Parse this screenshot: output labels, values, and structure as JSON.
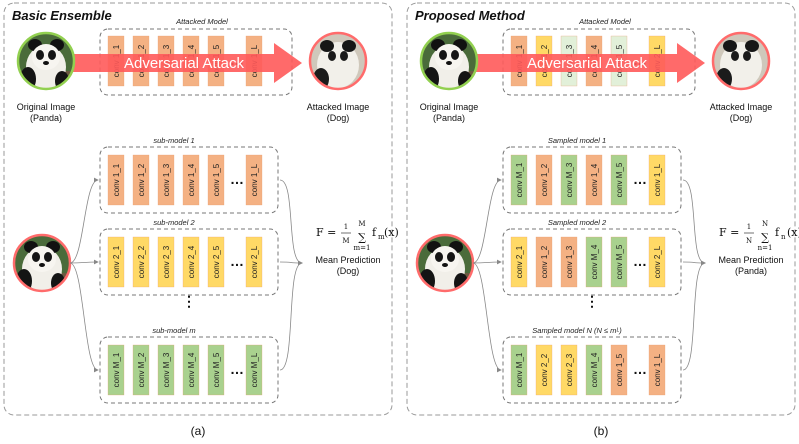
{
  "colors": {
    "orange": "#f4b183",
    "yellow": "#ffd966",
    "green": "#a9d18e",
    "lightgreen": "#e2f0d9",
    "arrow": "#ff5a5a",
    "ring_green": "#92d050",
    "ring_red": "#ff6b6b"
  },
  "panels": [
    {
      "id": "a",
      "title": "Basic Ensemble",
      "subfigure_label": "(a)",
      "attacked_model_label": "Attacked Model",
      "attack_label": "Adversarial Attack",
      "original_caption": [
        "Original Image",
        "(Panda)"
      ],
      "attacked_caption": [
        "Attacked Image",
        "(Dog)"
      ],
      "attacked_layers": [
        {
          "label": "conv 1_1",
          "color": "orange"
        },
        {
          "label": "conv 1_2",
          "color": "orange"
        },
        {
          "label": "conv 1_3",
          "color": "orange"
        },
        {
          "label": "conv 1_4",
          "color": "orange"
        },
        {
          "label": "conv 1_5",
          "color": "orange"
        },
        {
          "label": "conv 1_L",
          "color": "orange"
        }
      ],
      "sub_models": [
        {
          "label": "sub-model 1",
          "layers": [
            {
              "label": "conv 1_1",
              "color": "orange"
            },
            {
              "label": "conv 1_2",
              "color": "orange"
            },
            {
              "label": "conv 1_3",
              "color": "orange"
            },
            {
              "label": "conv 1_4",
              "color": "orange"
            },
            {
              "label": "conv 1_5",
              "color": "orange"
            },
            {
              "label": "conv 1_L",
              "color": "orange"
            }
          ]
        },
        {
          "label": "sub-model 2",
          "layers": [
            {
              "label": "conv 2_1",
              "color": "yellow"
            },
            {
              "label": "conv 2_2",
              "color": "yellow"
            },
            {
              "label": "conv 2_3",
              "color": "yellow"
            },
            {
              "label": "conv 2_4",
              "color": "yellow"
            },
            {
              "label": "conv 2_5",
              "color": "yellow"
            },
            {
              "label": "conv 2_L",
              "color": "yellow"
            }
          ]
        },
        {
          "label": "sub-model m",
          "layers": [
            {
              "label": "conv M_1",
              "color": "green"
            },
            {
              "label": "conv M_2",
              "color": "green"
            },
            {
              "label": "conv M_3",
              "color": "green"
            },
            {
              "label": "conv M_4",
              "color": "green"
            },
            {
              "label": "conv M_5",
              "color": "green"
            },
            {
              "label": "conv M_L",
              "color": "green"
            }
          ]
        }
      ],
      "formula": {
        "lhs": "F = ",
        "num": "1",
        "den": "M",
        "sum_top": "M",
        "sum_bot": "m=1",
        "term": "f",
        "term_sub": "m",
        "term_arg": "(x)"
      },
      "prediction": [
        "Mean Prediction",
        "(Dog)"
      ]
    },
    {
      "id": "b",
      "title": "Proposed Method",
      "subfigure_label": "(b)",
      "attacked_model_label": "Attacked Model",
      "attack_label": "Adversarial Attack",
      "original_caption": [
        "Original Image",
        "(Panda)"
      ],
      "attacked_caption": [
        "Attacked Image",
        "(Dog)"
      ],
      "attacked_layers": [
        {
          "label": "conv 1_1",
          "color": "orange"
        },
        {
          "label": "conv 1_2",
          "color": "yellow"
        },
        {
          "label": "conv 1_3",
          "color": "lightgreen"
        },
        {
          "label": "conv 1_4",
          "color": "orange"
        },
        {
          "label": "conv 1_5",
          "color": "lightgreen"
        },
        {
          "label": "conv 2_L",
          "color": "yellow"
        }
      ],
      "sub_models": [
        {
          "label": "Sampled model 1",
          "layers": [
            {
              "label": "conv M_1",
              "color": "green"
            },
            {
              "label": "conv 1_2",
              "color": "orange"
            },
            {
              "label": "conv M_3",
              "color": "green"
            },
            {
              "label": "conv 1_4",
              "color": "orange"
            },
            {
              "label": "conv M_5",
              "color": "green"
            },
            {
              "label": "conv 1_L",
              "color": "yellow"
            }
          ]
        },
        {
          "label": "Sampled model 2",
          "layers": [
            {
              "label": "conv 2_1",
              "color": "yellow"
            },
            {
              "label": "conv 1_2",
              "color": "orange"
            },
            {
              "label": "conv 1_3",
              "color": "orange"
            },
            {
              "label": "conv M_4",
              "color": "green"
            },
            {
              "label": "conv M_5",
              "color": "green"
            },
            {
              "label": "conv 2_L",
              "color": "yellow"
            }
          ]
        },
        {
          "label": "Sampled model N (N ≤ mᴸ)",
          "layers": [
            {
              "label": "conv M_1",
              "color": "green"
            },
            {
              "label": "conv 2_2",
              "color": "yellow"
            },
            {
              "label": "conv 2_3",
              "color": "yellow"
            },
            {
              "label": "conv M_4",
              "color": "green"
            },
            {
              "label": "conv 1_5",
              "color": "orange"
            },
            {
              "label": "conv 1_L",
              "color": "orange"
            }
          ]
        }
      ],
      "formula": {
        "lhs": "F = ",
        "num": "1",
        "den": "N",
        "sum_top": "N",
        "sum_bot": "n=1",
        "term": "f",
        "term_sub": "n",
        "term_arg": "(x)"
      },
      "prediction": [
        "Mean Prediction",
        "(Panda)"
      ]
    }
  ],
  "vertical_dots": "⋮",
  "horizontal_dots": "…",
  "panda_icon": "panda-photo",
  "dog_icon": "dog-photo"
}
